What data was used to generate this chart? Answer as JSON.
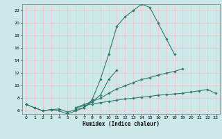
{
  "title": "",
  "xlabel": "Humidex (Indice chaleur)",
  "background_color": "#cce8e8",
  "grid_color": "#f5c8c8",
  "line_color": "#2e7b6b",
  "xlim": [
    -0.5,
    23.5
  ],
  "ylim": [
    5.5,
    23.0
  ],
  "yticks": [
    6,
    8,
    10,
    12,
    14,
    16,
    18,
    20,
    22
  ],
  "xticks": [
    0,
    1,
    2,
    3,
    4,
    5,
    6,
    7,
    8,
    9,
    10,
    11,
    12,
    13,
    14,
    15,
    16,
    17,
    18,
    19,
    20,
    21,
    22,
    23
  ],
  "line1": [
    7.0,
    6.5,
    6.0,
    6.2,
    6.3,
    5.8,
    6.2,
    6.5,
    7.8,
    11.0,
    15.0,
    19.5,
    21.0,
    22.0,
    23.0,
    22.5,
    20.0,
    17.5,
    15.0,
    null,
    null,
    null,
    null,
    null
  ],
  "line2": [
    7.0,
    6.5,
    6.0,
    6.2,
    6.0,
    5.5,
    6.0,
    6.5,
    7.5,
    8.5,
    11.0,
    12.5,
    null,
    null,
    null,
    null,
    null,
    null,
    null,
    null,
    null,
    null,
    null,
    null
  ],
  "line3": [
    7.0,
    null,
    null,
    null,
    null,
    null,
    6.5,
    7.0,
    7.5,
    8.0,
    8.8,
    9.5,
    10.0,
    10.5,
    11.0,
    11.3,
    11.7,
    12.0,
    12.3,
    12.7,
    null,
    null,
    null,
    null
  ],
  "line4": [
    7.0,
    null,
    null,
    null,
    null,
    null,
    6.5,
    6.8,
    7.1,
    7.3,
    7.5,
    7.7,
    7.9,
    8.0,
    8.2,
    8.3,
    8.5,
    8.6,
    8.7,
    8.8,
    9.0,
    9.2,
    9.4,
    8.8
  ]
}
